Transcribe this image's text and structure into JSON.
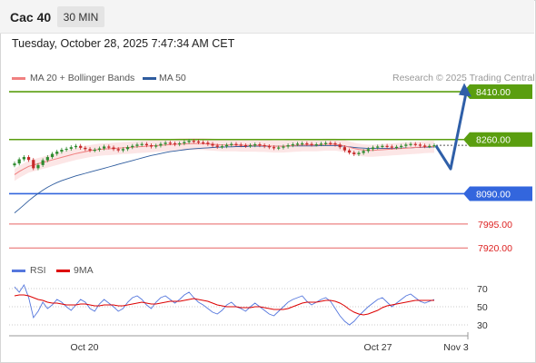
{
  "header": {
    "instrument": "Cac 40",
    "timeframe": "30 MIN"
  },
  "timestamp": "Tuesday, October 28, 2025 7:47:34 AM CET",
  "legend": {
    "items": [
      {
        "label": "MA 20 + Bollinger Bands",
        "color": "#f08080"
      },
      {
        "label": "MA 50",
        "color": "#2e5c9e"
      }
    ]
  },
  "rsi_legend": {
    "items": [
      {
        "label": "RSI",
        "color": "#5577dd"
      },
      {
        "label": "9MA",
        "color": "#dd0000"
      }
    ]
  },
  "copyright": "Research © 2025 Trading Central",
  "colors": {
    "resistance": "#5a9e0f",
    "pivot": "#3366dd",
    "support": "#dd2222",
    "arrow": "#2f5fa8",
    "candle_up": "#2e8b2e",
    "candle_down": "#c62828"
  },
  "chart_data": [
    {
      "type": "line",
      "title": "",
      "y_range": [
        7895,
        8430
      ],
      "levels": [
        {
          "value": "8410.00",
          "kind": "resistance"
        },
        {
          "value": "8260.00",
          "kind": "resistance"
        },
        {
          "value": "8090.00",
          "kind": "pivot"
        },
        {
          "value": "7995.00",
          "kind": "support"
        },
        {
          "value": "7920.00",
          "kind": "support"
        }
      ],
      "x_ticks": [
        "Oct 20",
        "Oct 27",
        "Nov 3"
      ],
      "price_series": [
        8185,
        8198,
        8205,
        8196,
        8170,
        8180,
        8195,
        8205,
        8215,
        8222,
        8228,
        8231,
        8236,
        8240,
        8234,
        8230,
        8226,
        8228,
        8232,
        8238,
        8235,
        8230,
        8226,
        8230,
        8236,
        8240,
        8244,
        8246,
        8242,
        8238,
        8241,
        8246,
        8250,
        8248,
        8245,
        8248,
        8252,
        8256,
        8254,
        8251,
        8250,
        8246,
        8241,
        8237,
        8239,
        8243,
        8246,
        8244,
        8242,
        8240,
        8242,
        8245,
        8242,
        8239,
        8236,
        8233,
        8235,
        8238,
        8242,
        8245,
        8247,
        8248,
        8246,
        8244,
        8245,
        8247,
        8249,
        8248,
        8244,
        8236,
        8226,
        8219,
        8214,
        8218,
        8224,
        8230,
        8235,
        8238,
        8240,
        8238,
        8235,
        8237,
        8240,
        8244,
        8246,
        8244,
        8241,
        8239,
        8240,
        8242
      ],
      "projection": [
        8240,
        8168,
        8420
      ],
      "ma50": [
        8030,
        8042,
        8055,
        8068,
        8080,
        8091,
        8101,
        8110,
        8118,
        8125,
        8131,
        8136,
        8141,
        8146,
        8150,
        8154,
        8158,
        8162,
        8166,
        8170,
        8174,
        8178,
        8182,
        8186,
        8190,
        8194,
        8198,
        8202,
        8206,
        8210,
        8213,
        8216,
        8219,
        8222,
        8224,
        8226,
        8228,
        8230,
        8231,
        8232,
        8233,
        8234,
        8235,
        8236,
        8236,
        8237,
        8237,
        8238,
        8238,
        8238,
        8239,
        8239,
        8239,
        8239,
        8239,
        8239,
        8239,
        8239,
        8240,
        8240,
        8240,
        8240,
        8240,
        8240,
        8240,
        8241,
        8241,
        8241,
        8241,
        8240,
        8239,
        8237,
        8235,
        8234,
        8233,
        8232,
        8232,
        8232,
        8232,
        8232,
        8232,
        8233,
        8233,
        8234,
        8234,
        8235,
        8235,
        8236,
        8236,
        8237
      ],
      "ma20": [
        8150,
        8160,
        8168,
        8176,
        8180,
        8184,
        8188,
        8192,
        8196,
        8200,
        8204,
        8208,
        8212,
        8216,
        8219,
        8222,
        8225,
        8227,
        8229,
        8230,
        8231,
        8232,
        8233,
        8234,
        8235,
        8236,
        8237,
        8238,
        8239,
        8240,
        8241,
        8242,
        8243,
        8244,
        8245,
        8246,
        8246,
        8247,
        8247,
        8247,
        8247,
        8246,
        8245,
        8244,
        8243,
        8243,
        8243,
        8243,
        8242,
        8242,
        8242,
        8242,
        8241,
        8241,
        8240,
        8239,
        8239,
        8239,
        8240,
        8241,
        8242,
        8243,
        8243,
        8243,
        8243,
        8244,
        8245,
        8245,
        8245,
        8243,
        8240,
        8236,
        8232,
        8229,
        8227,
        8226,
        8226,
        8227,
        8228,
        8229,
        8230,
        8231,
        8232,
        8233,
        8234,
        8235,
        8236,
        8237,
        8238,
        8238
      ]
    },
    {
      "type": "line",
      "title": "",
      "y_range": [
        20,
        80
      ],
      "y_ticks": [
        "70",
        "50",
        "30"
      ],
      "series": [
        {
          "name": "RSI",
          "values": [
            72,
            66,
            74,
            60,
            38,
            45,
            55,
            48,
            52,
            58,
            55,
            50,
            46,
            52,
            58,
            55,
            48,
            45,
            53,
            58,
            54,
            50,
            45,
            48,
            55,
            60,
            62,
            58,
            52,
            48,
            55,
            60,
            62,
            58,
            54,
            58,
            63,
            66,
            60,
            55,
            52,
            48,
            44,
            42,
            46,
            52,
            55,
            50,
            48,
            45,
            50,
            54,
            50,
            46,
            42,
            40,
            45,
            50,
            55,
            58,
            60,
            62,
            56,
            52,
            55,
            58,
            60,
            56,
            48,
            40,
            34,
            30,
            34,
            40,
            45,
            50,
            54,
            58,
            60,
            55,
            50,
            54,
            58,
            62,
            64,
            60,
            56,
            54,
            56,
            58
          ]
        },
        {
          "name": "9MA",
          "values": [
            62,
            63,
            63,
            62,
            60,
            58,
            57,
            55,
            54,
            54,
            53,
            52,
            52,
            52,
            53,
            53,
            52,
            51,
            51,
            52,
            52,
            52,
            51,
            51,
            52,
            53,
            54,
            55,
            54,
            53,
            53,
            54,
            55,
            56,
            56,
            56,
            57,
            58,
            59,
            58,
            57,
            56,
            54,
            52,
            51,
            50,
            50,
            50,
            49,
            49,
            49,
            50,
            50,
            49,
            48,
            47,
            47,
            47,
            48,
            50,
            52,
            54,
            55,
            55,
            55,
            56,
            57,
            57,
            56,
            54,
            51,
            47,
            44,
            42,
            41,
            42,
            44,
            46,
            49,
            51,
            52,
            53,
            54,
            55,
            56,
            57,
            57,
            57,
            57,
            57
          ]
        }
      ]
    }
  ]
}
